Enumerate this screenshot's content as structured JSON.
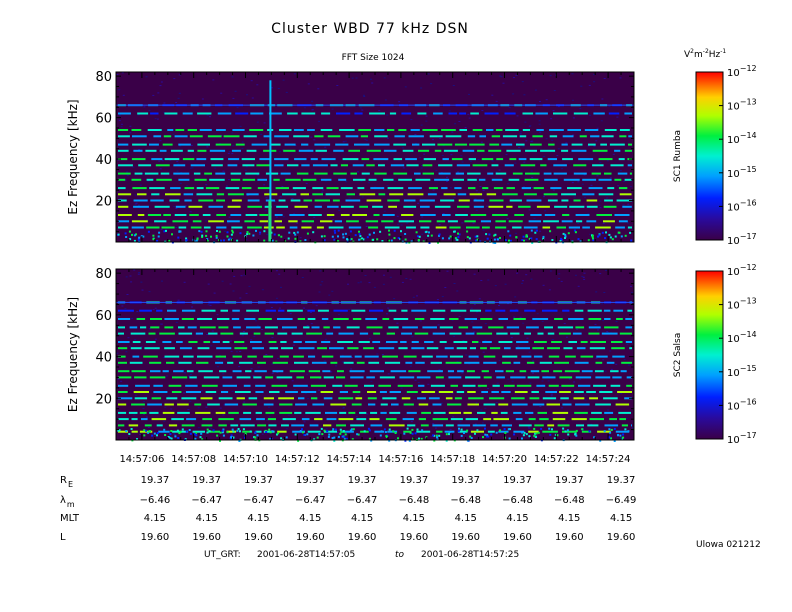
{
  "title": "Cluster WBD 77 kHz DSN",
  "subtitle": "FFT Size 1024",
  "units": {
    "base": "V",
    "sup1": "2",
    "mid": "m",
    "sup2": "-2",
    "end": "Hz",
    "sup3": "-1"
  },
  "credit": "Ulowa 021212",
  "ut_line": {
    "label": "UT_GRT:",
    "start": "2001-06-28T14:57:05",
    "to": "to",
    "end": "2001-06-28T14:57:25"
  },
  "chart_data": [
    {
      "type": "heatmap",
      "panel": "top",
      "ylabel": "Ez Frequency [kHz]",
      "ylim": [
        0,
        82
      ],
      "yticks": [
        "80",
        "60",
        "40",
        "20"
      ],
      "colorbar_label": "SC1 Rumba",
      "colorbar_ticks": [
        {
          "exp": "-12"
        },
        {
          "exp": "-13"
        },
        {
          "exp": "-14"
        },
        {
          "exp": "-15"
        },
        {
          "exp": "-16"
        },
        {
          "exp": "-17"
        }
      ],
      "features": {
        "harmonic_lines_khz": [
          66,
          62,
          54,
          51,
          47,
          44,
          40,
          37,
          33,
          30,
          26,
          23,
          20,
          17,
          13,
          10,
          7
        ],
        "spike_time": "14:57:11"
      }
    },
    {
      "type": "heatmap",
      "panel": "bottom",
      "ylabel": "Ez Frequency [kHz]",
      "ylim": [
        0,
        82
      ],
      "yticks": [
        "80",
        "60",
        "40",
        "20"
      ],
      "colorbar_label": "SC2 Salsa",
      "colorbar_ticks": [
        {
          "exp": "-12"
        },
        {
          "exp": "-13"
        },
        {
          "exp": "-14"
        },
        {
          "exp": "-15"
        },
        {
          "exp": "-16"
        },
        {
          "exp": "-17"
        }
      ],
      "features": {
        "harmonic_lines_khz": [
          66,
          62,
          58,
          54,
          51,
          47,
          44,
          40,
          37,
          33,
          30,
          26,
          23,
          20,
          17,
          13,
          10,
          7,
          4
        ]
      }
    }
  ],
  "xticks": [
    "14:57:06",
    "14:57:08",
    "14:57:10",
    "14:57:12",
    "14:57:14",
    "14:57:16",
    "14:57:18",
    "14:57:20",
    "14:57:22",
    "14:57:24"
  ],
  "ephemeris": [
    {
      "label": "R",
      "sub": "E",
      "values": [
        "19.37",
        "19.37",
        "19.37",
        "19.37",
        "19.37",
        "19.37",
        "19.37",
        "19.37",
        "19.37",
        "19.37"
      ]
    },
    {
      "label": "λ",
      "sub": "m",
      "values": [
        "-6.46",
        "-6.47",
        "-6.47",
        "-6.47",
        "-6.47",
        "-6.48",
        "-6.48",
        "-6.48",
        "-6.48",
        "-6.49"
      ]
    },
    {
      "label": "MLT",
      "sub": "",
      "values": [
        "4.15",
        "4.15",
        "4.15",
        "4.15",
        "4.15",
        "4.15",
        "4.15",
        "4.15",
        "4.15",
        "4.15"
      ]
    },
    {
      "label": "L",
      "sub": "",
      "values": [
        "19.60",
        "19.60",
        "19.60",
        "19.60",
        "19.60",
        "19.60",
        "19.60",
        "19.60",
        "19.60",
        "19.60"
      ]
    }
  ]
}
